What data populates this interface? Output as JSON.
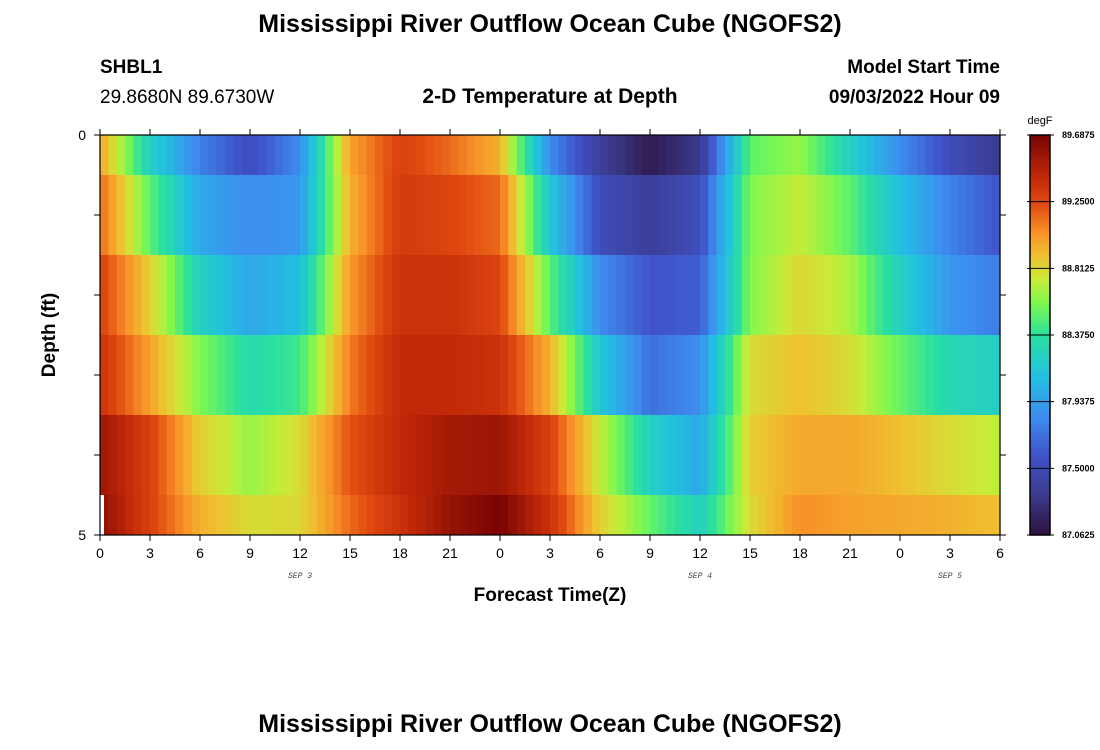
{
  "header": {
    "title": "Mississippi River Outflow Ocean Cube (NGOFS2)",
    "station": "SHBL1",
    "coords": "29.8680N  89.6730W",
    "subtitle": "2-D Temperature at Depth",
    "model_start_label": "Model Start Time",
    "model_start_value": "09/03/2022 Hour 09",
    "footer_title": "Mississippi River Outflow Ocean Cube (NGOFS2)"
  },
  "chart_data": {
    "type": "heatmap",
    "title": "2-D Temperature at Depth",
    "xlabel": "Forecast Time(Z)",
    "ylabel": "Depth (ft)",
    "units": "degF",
    "x_hours": [
      0,
      3,
      6,
      9,
      12,
      15,
      18,
      21,
      24,
      27,
      30,
      33,
      36,
      39,
      42,
      45,
      48,
      51,
      54
    ],
    "xlim": [
      0,
      54
    ],
    "x_tick_labels": [
      "0",
      "3",
      "6",
      "9",
      "12",
      "15",
      "18",
      "21",
      "0",
      "3",
      "6",
      "9",
      "12",
      "15",
      "18",
      "21",
      "0",
      "3",
      "6"
    ],
    "date_labels": [
      {
        "text": "SEP 3",
        "hour": 12
      },
      {
        "text": "SEP 4",
        "hour": 36
      },
      {
        "text": "SEP 5",
        "hour": 51
      }
    ],
    "depths": [
      0,
      1,
      2,
      3,
      4,
      5
    ],
    "ylim": [
      0,
      5
    ],
    "y_tick_labels": [
      "0",
      "5"
    ],
    "values": [
      [
        89.0,
        88.24,
        87.8,
        87.53,
        87.85,
        89.0,
        89.29,
        89.16,
        88.95,
        87.85,
        87.38,
        87.14,
        87.33,
        88.51,
        88.64,
        88.24,
        87.85,
        87.53,
        87.33
      ],
      [
        89.16,
        88.51,
        87.98,
        87.85,
        87.9,
        88.95,
        89.32,
        89.27,
        89.16,
        88.17,
        87.53,
        87.38,
        87.53,
        88.59,
        88.74,
        88.51,
        88.11,
        87.8,
        87.59
      ],
      [
        89.29,
        88.85,
        88.24,
        87.98,
        88.11,
        89.03,
        89.37,
        89.37,
        89.27,
        88.51,
        87.85,
        87.59,
        87.64,
        88.59,
        88.82,
        88.69,
        88.24,
        87.9,
        87.77
      ],
      [
        89.37,
        89.0,
        88.59,
        88.32,
        88.43,
        89.11,
        89.42,
        89.42,
        89.37,
        88.95,
        88.17,
        87.72,
        87.85,
        88.8,
        88.9,
        88.8,
        88.53,
        88.3,
        88.22
      ],
      [
        89.56,
        89.29,
        88.85,
        88.64,
        88.8,
        89.22,
        89.42,
        89.53,
        89.56,
        89.29,
        88.74,
        88.24,
        87.98,
        88.85,
        88.98,
        88.98,
        88.9,
        88.8,
        88.72
      ],
      [
        89.61,
        89.29,
        88.95,
        88.8,
        88.82,
        89.16,
        89.37,
        89.58,
        89.69,
        89.37,
        88.85,
        88.53,
        88.24,
        88.8,
        89.06,
        89.0,
        88.98,
        88.95,
        88.9
      ]
    ],
    "colorbar": {
      "label": "degF",
      "range": [
        87.0625,
        89.6875
      ],
      "tick_labels": [
        "89.6875",
        "89.2500",
        "88.8125",
        "88.3750",
        "87.9375",
        "87.5000",
        "87.0625"
      ],
      "tick_values": [
        89.6875,
        89.25,
        88.8125,
        88.375,
        87.9375,
        87.5,
        87.0625
      ]
    }
  }
}
